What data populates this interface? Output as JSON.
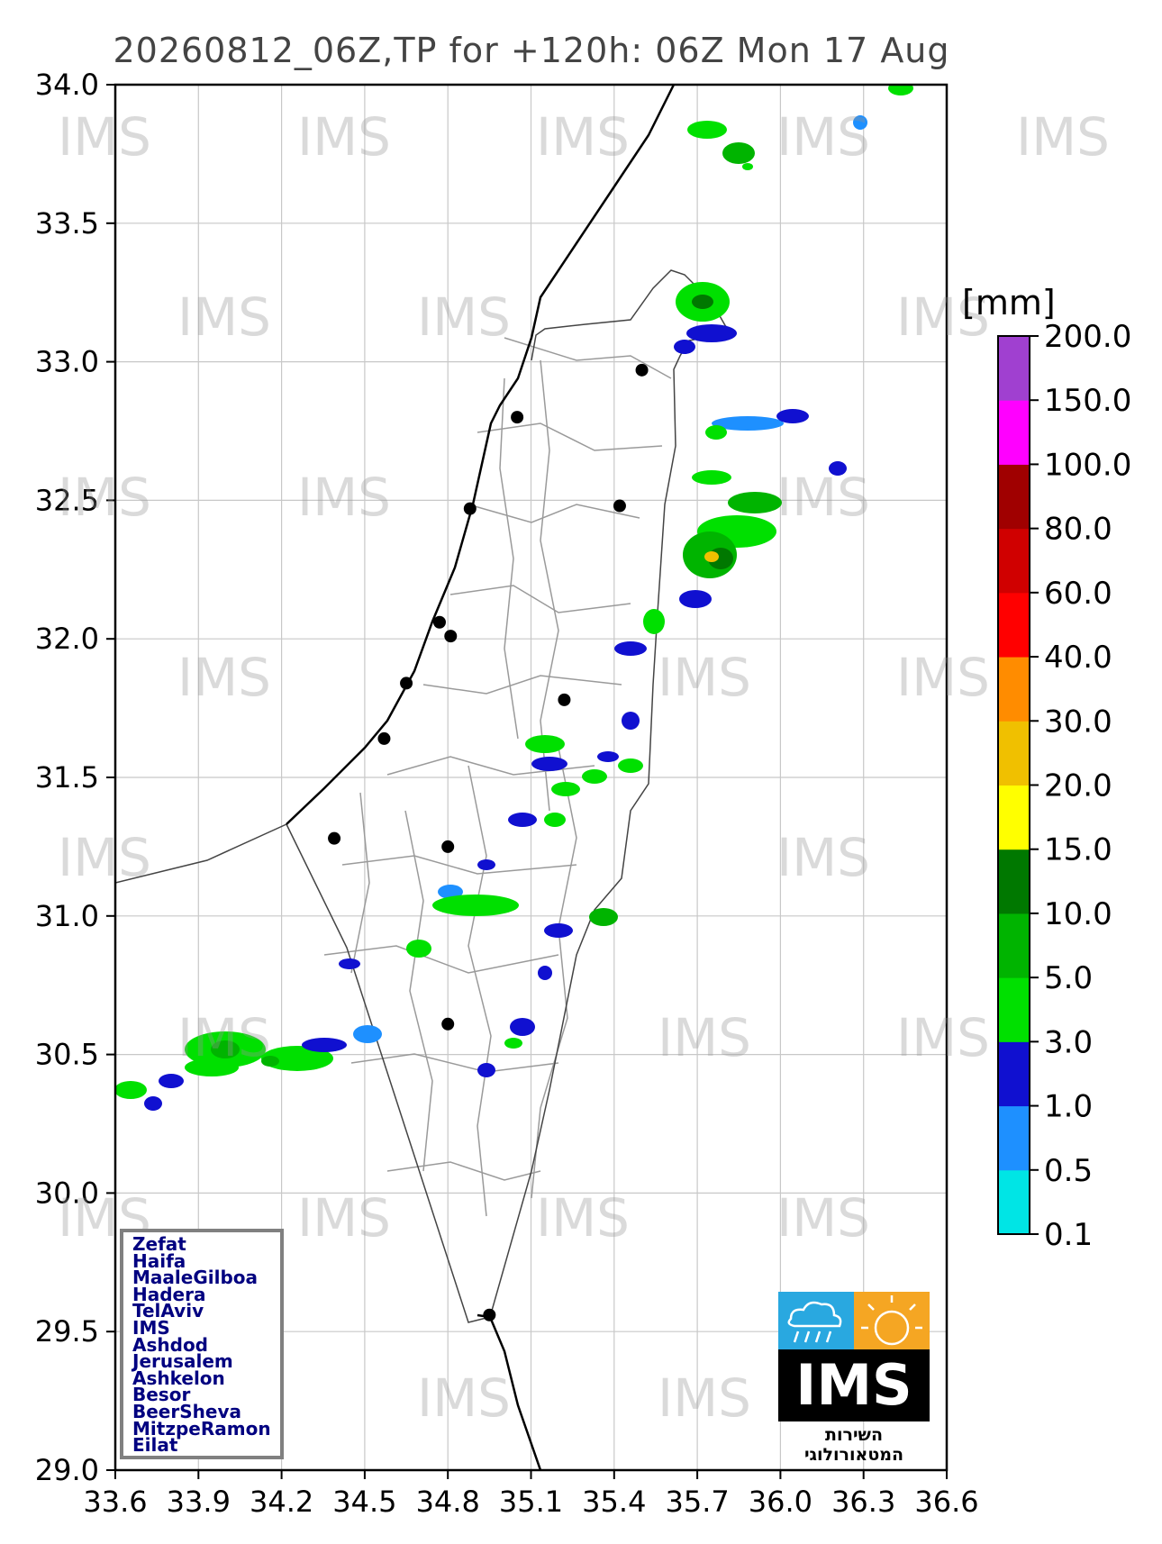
{
  "title": "20260812_06Z,TP for +120h: 06Z Mon 17 Aug",
  "watermark_text": "IMS",
  "axes": {
    "x_ticks": [
      "33.6",
      "33.9",
      "34.2",
      "34.5",
      "34.8",
      "35.1",
      "35.4",
      "35.7",
      "36.0",
      "36.3",
      "36.6"
    ],
    "y_ticks": [
      "34.0",
      "33.5",
      "33.0",
      "32.5",
      "32.0",
      "31.5",
      "31.0",
      "30.5",
      "30.0",
      "29.5",
      "29.0"
    ],
    "xlim": [
      33.6,
      36.6
    ],
    "ylim": [
      29.0,
      34.0
    ]
  },
  "colorbar": {
    "unit": "[mm]",
    "levels": [
      "0.1",
      "0.5",
      "1.0",
      "3.0",
      "5.0",
      "10.0",
      "15.0",
      "20.0",
      "30.0",
      "40.0",
      "60.0",
      "80.0",
      "100.0",
      "150.0",
      "200.0"
    ],
    "colors": [
      "#00e5e5",
      "#1e90ff",
      "#1010d0",
      "#00e000",
      "#00b400",
      "#007800",
      "#ffff00",
      "#f0c000",
      "#ff8c00",
      "#ff0000",
      "#d00000",
      "#a00000",
      "#ff00ff",
      "#a040d0"
    ]
  },
  "stations_legend": [
    "Zefat",
    "Haifa",
    "MaaleGilboa",
    "Hadera",
    "TelAviv",
    "IMS",
    "Ashdod",
    "Jerusalem",
    "Ashkelon",
    "Besor",
    "BeerSheva",
    "MitzpeRamon",
    "Eilat"
  ],
  "stations": [
    {
      "name": "Zefat",
      "lon": 35.5,
      "lat": 32.97
    },
    {
      "name": "Haifa",
      "lon": 35.05,
      "lat": 32.8
    },
    {
      "name": "MaaleGilboa",
      "lon": 35.42,
      "lat": 32.48
    },
    {
      "name": "Hadera",
      "lon": 34.88,
      "lat": 32.47
    },
    {
      "name": "TelAviv",
      "lon": 34.77,
      "lat": 32.06
    },
    {
      "name": "IMS",
      "lon": 34.81,
      "lat": 32.01
    },
    {
      "name": "Ashdod",
      "lon": 34.65,
      "lat": 31.84
    },
    {
      "name": "Jerusalem",
      "lon": 35.22,
      "lat": 31.78
    },
    {
      "name": "Ashkelon",
      "lon": 34.57,
      "lat": 31.64
    },
    {
      "name": "Besor",
      "lon": 34.39,
      "lat": 31.28
    },
    {
      "name": "BeerSheva",
      "lon": 34.8,
      "lat": 31.25
    },
    {
      "name": "MitzpeRamon",
      "lon": 34.8,
      "lat": 30.61
    },
    {
      "name": "Eilat",
      "lon": 34.95,
      "lat": 29.56
    }
  ],
  "logo": {
    "name": "IMS",
    "subtitle": "השירות המטאורולוגי"
  }
}
